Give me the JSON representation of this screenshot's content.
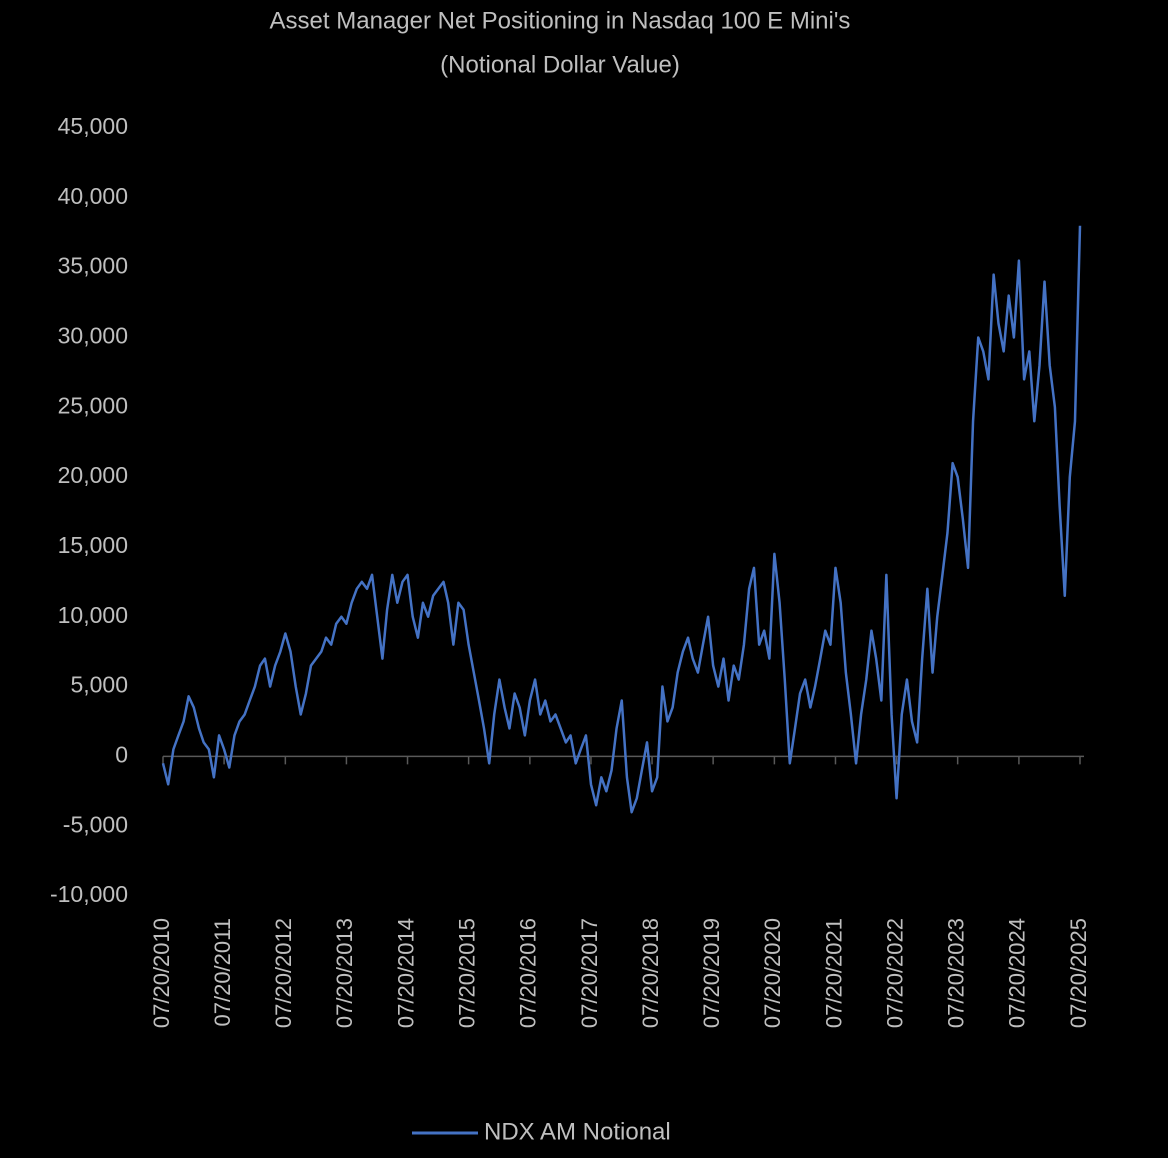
{
  "chart_data": {
    "type": "line",
    "title": "Asset Manager Net  Positioning in Nasdaq 100 E Mini's",
    "subtitle": "(Notional Dollar Value)",
    "x": [
      "07/20/2010",
      "08/20/2010",
      "09/20/2010",
      "10/20/2010",
      "11/20/2010",
      "12/20/2010",
      "01/20/2011",
      "02/20/2011",
      "03/20/2011",
      "04/20/2011",
      "05/20/2011",
      "06/20/2011",
      "07/20/2011",
      "08/20/2011",
      "09/20/2011",
      "10/20/2011",
      "11/20/2011",
      "12/20/2011",
      "01/20/2012",
      "02/20/2012",
      "03/20/2012",
      "04/20/2012",
      "05/20/2012",
      "06/20/2012",
      "07/20/2012",
      "08/20/2012",
      "09/20/2012",
      "10/20/2012",
      "11/20/2012",
      "12/20/2012",
      "01/20/2013",
      "02/20/2013",
      "03/20/2013",
      "04/20/2013",
      "05/20/2013",
      "06/20/2013",
      "07/20/2013",
      "08/20/2013",
      "09/20/2013",
      "10/20/2013",
      "11/20/2013",
      "12/20/2013",
      "01/20/2014",
      "02/20/2014",
      "03/20/2014",
      "04/20/2014",
      "05/20/2014",
      "06/20/2014",
      "07/20/2014",
      "08/20/2014",
      "09/20/2014",
      "10/20/2014",
      "11/20/2014",
      "12/20/2014",
      "01/20/2015",
      "02/20/2015",
      "03/20/2015",
      "04/20/2015",
      "05/20/2015",
      "06/20/2015",
      "07/20/2015",
      "08/20/2015",
      "09/20/2015",
      "10/20/2015",
      "11/20/2015",
      "12/20/2015",
      "01/20/2016",
      "02/20/2016",
      "03/20/2016",
      "04/20/2016",
      "05/20/2016",
      "06/20/2016",
      "07/20/2016",
      "08/20/2016",
      "09/20/2016",
      "10/20/2016",
      "11/20/2016",
      "12/20/2016",
      "01/20/2017",
      "02/20/2017",
      "03/20/2017",
      "04/20/2017",
      "05/20/2017",
      "06/20/2017",
      "07/20/2017",
      "08/20/2017",
      "09/20/2017",
      "10/20/2017",
      "11/20/2017",
      "12/20/2017",
      "01/20/2018",
      "02/20/2018",
      "03/20/2018",
      "04/20/2018",
      "05/20/2018",
      "06/20/2018",
      "07/20/2018",
      "08/20/2018",
      "09/20/2018",
      "10/20/2018",
      "11/20/2018",
      "12/20/2018",
      "01/20/2019",
      "02/20/2019",
      "03/20/2019",
      "04/20/2019",
      "05/20/2019",
      "06/20/2019",
      "07/20/2019",
      "08/20/2019",
      "09/20/2019",
      "10/20/2019",
      "11/20/2019",
      "12/20/2019",
      "01/20/2020",
      "02/20/2020",
      "03/20/2020",
      "04/20/2020",
      "05/20/2020",
      "06/20/2020",
      "07/20/2020",
      "08/20/2020",
      "09/20/2020",
      "10/20/2020",
      "11/20/2020",
      "12/20/2020",
      "01/20/2021",
      "02/20/2021",
      "03/20/2021",
      "04/20/2021",
      "05/20/2021",
      "06/20/2021",
      "07/20/2021",
      "08/20/2021",
      "09/20/2021",
      "10/20/2021",
      "11/20/2021",
      "12/20/2021",
      "01/20/2022",
      "02/20/2022",
      "03/20/2022",
      "04/20/2022",
      "05/20/2022",
      "06/20/2022",
      "07/20/2022",
      "08/20/2022",
      "09/20/2022",
      "10/20/2022",
      "11/20/2022",
      "12/20/2022",
      "01/20/2023",
      "02/20/2023",
      "03/20/2023",
      "04/20/2023",
      "05/20/2023",
      "06/20/2023",
      "07/20/2023",
      "08/20/2023",
      "09/20/2023",
      "10/20/2023",
      "11/20/2023",
      "12/20/2023",
      "01/20/2024",
      "02/20/2024",
      "03/20/2024",
      "04/20/2024",
      "05/20/2024",
      "06/20/2024",
      "07/20/2024",
      "08/20/2024",
      "09/20/2024",
      "10/20/2024",
      "11/20/2024",
      "12/20/2024",
      "01/20/2025",
      "02/20/2025",
      "03/20/2025",
      "04/20/2025",
      "05/20/2025",
      "06/20/2025",
      "07/20/2025"
    ],
    "series": [
      {
        "name": "NDX AM Notional",
        "color": "#4472c4",
        "values": [
          -500,
          -2000,
          500,
          1500,
          2500,
          4300,
          3500,
          2000,
          1000,
          500,
          -1500,
          1500,
          500,
          -800,
          1500,
          2500,
          3000,
          4000,
          5000,
          6500,
          7000,
          5000,
          6500,
          7500,
          8800,
          7500,
          5000,
          3000,
          4500,
          6500,
          7000,
          7500,
          8500,
          8000,
          9500,
          10000,
          9500,
          11000,
          12000,
          12500,
          12000,
          13000,
          10000,
          7000,
          10500,
          13000,
          11000,
          12500,
          13000,
          10000,
          8500,
          11000,
          10000,
          11500,
          12000,
          12500,
          11000,
          8000,
          11000,
          10500,
          8000,
          6000,
          4000,
          2000,
          -500,
          3000,
          5500,
          3500,
          2000,
          4500,
          3500,
          1500,
          4000,
          5500,
          3000,
          4000,
          2500,
          3000,
          2000,
          1000,
          1500,
          -500,
          500,
          1500,
          -2000,
          -3500,
          -1500,
          -2500,
          -1000,
          2000,
          4000,
          -1500,
          -4000,
          -3000,
          -1000,
          1000,
          -2500,
          -1500,
          5000,
          2500,
          3500,
          6000,
          7500,
          8500,
          7000,
          6000,
          8000,
          10000,
          6500,
          5000,
          7000,
          4000,
          6500,
          5500,
          8000,
          12000,
          13500,
          8000,
          9000,
          7000,
          14500,
          11000,
          5500,
          -500,
          2000,
          4500,
          5500,
          3500,
          5000,
          7000,
          9000,
          8000,
          13500,
          11000,
          6000,
          3000,
          -500,
          3000,
          5500,
          9000,
          7000,
          4000,
          13000,
          3000,
          -3000,
          3000,
          5500,
          2500,
          1000,
          7000,
          12000,
          6000,
          10000,
          13000,
          16000,
          21000,
          20000,
          17000,
          13500,
          24000,
          30000,
          29000,
          27000,
          34500,
          31000,
          29000,
          33000,
          30000,
          35500,
          27000,
          29000,
          24000,
          28000,
          34000,
          28000,
          25000,
          18000,
          11500,
          20000,
          24000,
          38000
        ]
      }
    ],
    "xlim": [
      "07/20/2010",
      "07/20/2025"
    ],
    "xticks": [
      "07/20/2010",
      "07/20/2011",
      "07/20/2012",
      "07/20/2013",
      "07/20/2014",
      "07/20/2015",
      "07/20/2016",
      "07/20/2017",
      "07/20/2018",
      "07/20/2019",
      "07/20/2020",
      "07/20/2021",
      "07/20/2022",
      "07/20/2023",
      "07/20/2024",
      "07/20/2025"
    ],
    "ylim": [
      -10000,
      45000
    ],
    "yticks": [
      {
        "value": -10000,
        "label": "-10,000"
      },
      {
        "value": -5000,
        "label": "-5,000"
      },
      0,
      {
        "value": 5000,
        "label": "5,000"
      },
      {
        "value": 10000,
        "label": "10,000"
      },
      {
        "value": 15000,
        "label": "15,000"
      },
      {
        "value": 20000,
        "label": "20,000"
      },
      {
        "value": 25000,
        "label": "25,000"
      },
      {
        "value": 30000,
        "label": "30,000"
      },
      {
        "value": 35000,
        "label": "35,000"
      },
      {
        "value": 40000,
        "label": "40,000"
      },
      {
        "value": 45000,
        "label": "45,000"
      }
    ],
    "grid": false,
    "legend": "bottom"
  }
}
